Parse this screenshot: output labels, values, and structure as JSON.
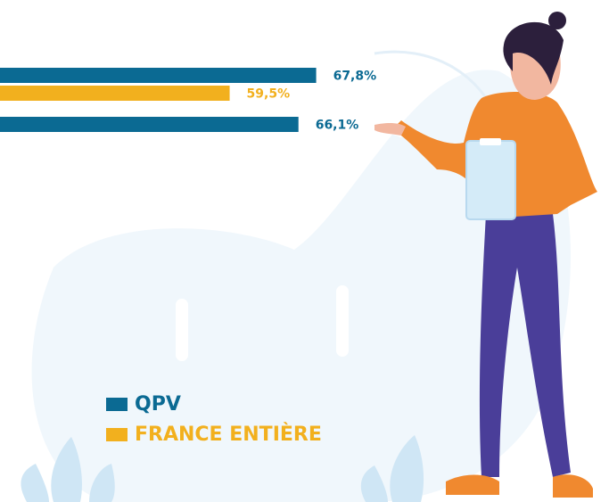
{
  "chart_data": {
    "type": "bar",
    "orientation": "horizontal",
    "categories": [
      null,
      null
    ],
    "series": [
      {
        "name": "QPV",
        "color": "#0b6a93",
        "values": [
          67.8,
          66.1
        ],
        "value_labels": [
          "67,8%",
          "66,1%"
        ]
      },
      {
        "name": "FRANCE ENTIÈRE",
        "color": "#f2b01e",
        "values": [
          59.5,
          null
        ],
        "value_labels": [
          "59,5%",
          null
        ]
      }
    ]
  }
}
